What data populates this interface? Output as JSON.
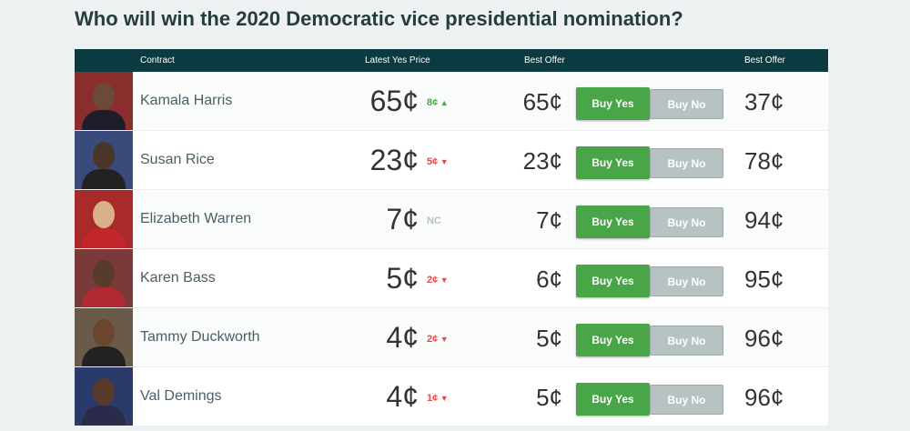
{
  "title": "Who will win the 2020 Democratic vice presidential nomination?",
  "headers": {
    "contract": "Contract",
    "latest": "Latest Yes Price",
    "best_yes": "Best Offer",
    "best_no": "Best Offer"
  },
  "buy_yes_label": "Buy Yes",
  "buy_no_label": "Buy No",
  "colors": {
    "header": "#0b3a40",
    "buy_yes": "#48a648",
    "buy_no": "#b7c3c3",
    "up": "#4aa84a",
    "down": "#e04a4a"
  },
  "rows": [
    {
      "name": "Kamala Harris",
      "price": "65¢",
      "change": "8¢",
      "dir": "up",
      "yes_offer": "65¢",
      "no_offer": "37¢"
    },
    {
      "name": "Susan Rice",
      "price": "23¢",
      "change": "5¢",
      "dir": "down",
      "yes_offer": "23¢",
      "no_offer": "78¢"
    },
    {
      "name": "Elizabeth Warren",
      "price": "7¢",
      "change": "NC",
      "dir": "nc",
      "yes_offer": "7¢",
      "no_offer": "94¢"
    },
    {
      "name": "Karen Bass",
      "price": "5¢",
      "change": "2¢",
      "dir": "down",
      "yes_offer": "6¢",
      "no_offer": "95¢"
    },
    {
      "name": "Tammy Duckworth",
      "price": "4¢",
      "change": "2¢",
      "dir": "down",
      "yes_offer": "5¢",
      "no_offer": "96¢"
    },
    {
      "name": "Val Demings",
      "price": "4¢",
      "change": "1¢",
      "dir": "down",
      "yes_offer": "5¢",
      "no_offer": "96¢"
    }
  ]
}
